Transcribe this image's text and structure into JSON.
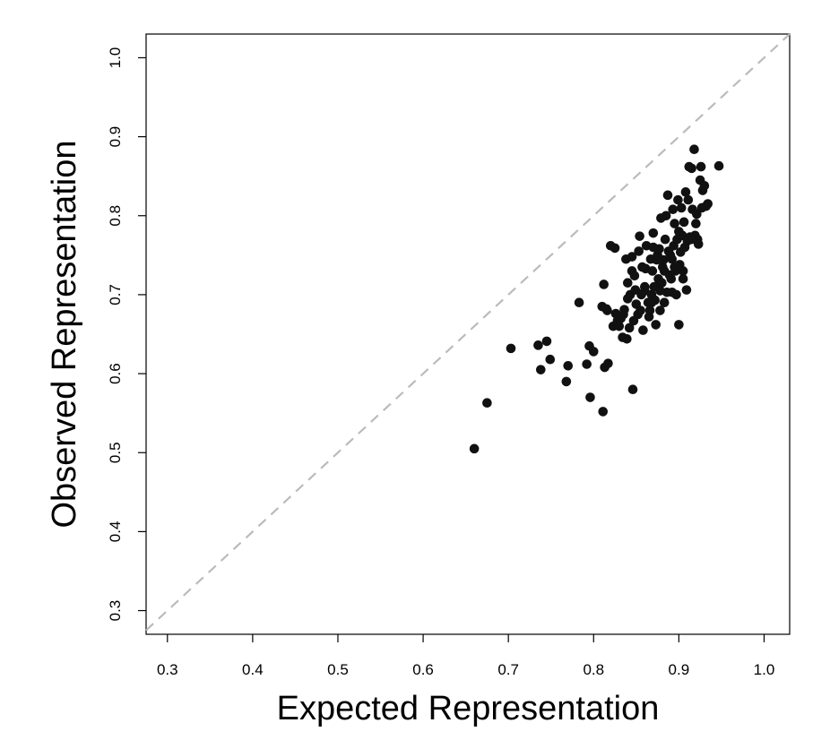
{
  "chart_data": {
    "type": "scatter",
    "xlabel": "Expected Representation",
    "ylabel": "Observed Representation",
    "xlim": [
      0.275,
      1.03
    ],
    "ylim": [
      0.27,
      1.03
    ],
    "x_ticks": [
      "0.3",
      "0.4",
      "0.5",
      "0.6",
      "0.7",
      "0.8",
      "0.9",
      "1.0"
    ],
    "y_ticks": [
      "0.3",
      "0.4",
      "0.5",
      "0.6",
      "0.7",
      "0.8",
      "0.9",
      "1.0"
    ],
    "grid": false,
    "reference_line": "identity y = x, dashed light gray",
    "point_color": "#111111",
    "reference_line_color": "#bbbbbb",
    "points": [
      [
        0.66,
        0.505
      ],
      [
        0.675,
        0.563
      ],
      [
        0.703,
        0.632
      ],
      [
        0.735,
        0.636
      ],
      [
        0.738,
        0.605
      ],
      [
        0.745,
        0.641
      ],
      [
        0.749,
        0.618
      ],
      [
        0.768,
        0.59
      ],
      [
        0.77,
        0.61
      ],
      [
        0.783,
        0.69
      ],
      [
        0.792,
        0.612
      ],
      [
        0.795,
        0.635
      ],
      [
        0.796,
        0.57
      ],
      [
        0.8,
        0.628
      ],
      [
        0.81,
        0.685
      ],
      [
        0.811,
        0.552
      ],
      [
        0.812,
        0.713
      ],
      [
        0.813,
        0.608
      ],
      [
        0.816,
        0.68
      ],
      [
        0.817,
        0.613
      ],
      [
        0.82,
        0.762
      ],
      [
        0.823,
        0.66
      ],
      [
        0.825,
        0.759
      ],
      [
        0.826,
        0.676
      ],
      [
        0.828,
        0.667
      ],
      [
        0.83,
        0.66
      ],
      [
        0.832,
        0.67
      ],
      [
        0.834,
        0.646
      ],
      [
        0.836,
        0.681
      ],
      [
        0.838,
        0.745
      ],
      [
        0.839,
        0.644
      ],
      [
        0.84,
        0.715
      ],
      [
        0.842,
        0.658
      ],
      [
        0.843,
        0.7
      ],
      [
        0.845,
        0.73
      ],
      [
        0.846,
        0.58
      ],
      [
        0.847,
        0.667
      ],
      [
        0.848,
        0.724
      ],
      [
        0.849,
        0.706
      ],
      [
        0.85,
        0.688
      ],
      [
        0.852,
        0.675
      ],
      [
        0.853,
        0.755
      ],
      [
        0.854,
        0.774
      ],
      [
        0.855,
        0.68
      ],
      [
        0.856,
        0.7
      ],
      [
        0.857,
        0.735
      ],
      [
        0.858,
        0.655
      ],
      [
        0.86,
        0.71
      ],
      [
        0.861,
        0.733
      ],
      [
        0.862,
        0.762
      ],
      [
        0.864,
        0.69
      ],
      [
        0.865,
        0.672
      ],
      [
        0.866,
        0.68
      ],
      [
        0.867,
        0.745
      ],
      [
        0.868,
        0.7
      ],
      [
        0.869,
        0.73
      ],
      [
        0.87,
        0.778
      ],
      [
        0.871,
        0.71
      ],
      [
        0.872,
        0.693
      ],
      [
        0.873,
        0.662
      ],
      [
        0.874,
        0.744
      ],
      [
        0.875,
        0.75
      ],
      [
        0.876,
        0.72
      ],
      [
        0.877,
        0.758
      ],
      [
        0.878,
        0.68
      ],
      [
        0.879,
        0.797
      ],
      [
        0.88,
        0.715
      ],
      [
        0.881,
        0.735
      ],
      [
        0.882,
        0.744
      ],
      [
        0.883,
        0.73
      ],
      [
        0.884,
        0.77
      ],
      [
        0.885,
        0.8
      ],
      [
        0.886,
        0.703
      ],
      [
        0.887,
        0.826
      ],
      [
        0.888,
        0.755
      ],
      [
        0.889,
        0.725
      ],
      [
        0.89,
        0.75
      ],
      [
        0.891,
        0.72
      ],
      [
        0.892,
        0.703
      ],
      [
        0.893,
        0.808
      ],
      [
        0.894,
        0.762
      ],
      [
        0.895,
        0.79
      ],
      [
        0.896,
        0.73
      ],
      [
        0.897,
        0.7
      ],
      [
        0.898,
        0.77
      ],
      [
        0.899,
        0.82
      ],
      [
        0.9,
        0.662
      ],
      [
        0.901,
        0.738
      ],
      [
        0.902,
        0.754
      ],
      [
        0.903,
        0.81
      ],
      [
        0.904,
        0.775
      ],
      [
        0.905,
        0.72
      ],
      [
        0.906,
        0.792
      ],
      [
        0.907,
        0.76
      ],
      [
        0.908,
        0.83
      ],
      [
        0.909,
        0.706
      ],
      [
        0.91,
        0.768
      ],
      [
        0.911,
        0.82
      ],
      [
        0.912,
        0.862
      ],
      [
        0.913,
        0.773
      ],
      [
        0.915,
        0.86
      ],
      [
        0.916,
        0.808
      ],
      [
        0.918,
        0.884
      ],
      [
        0.919,
        0.775
      ],
      [
        0.92,
        0.79
      ],
      [
        0.921,
        0.802
      ],
      [
        0.922,
        0.77
      ],
      [
        0.923,
        0.764
      ],
      [
        0.925,
        0.845
      ],
      [
        0.926,
        0.862
      ],
      [
        0.927,
        0.81
      ],
      [
        0.928,
        0.832
      ],
      [
        0.93,
        0.838
      ],
      [
        0.932,
        0.812
      ],
      [
        0.934,
        0.815
      ],
      [
        0.947,
        0.863
      ],
      [
        0.895,
        0.735
      ],
      [
        0.905,
        0.73
      ],
      [
        0.878,
        0.705
      ],
      [
        0.868,
        0.69
      ],
      [
        0.86,
        0.705
      ],
      [
        0.84,
        0.695
      ],
      [
        0.845,
        0.748
      ],
      [
        0.815,
        0.682
      ],
      [
        0.835,
        0.675
      ],
      [
        0.87,
        0.76
      ],
      [
        0.9,
        0.78
      ],
      [
        0.915,
        0.77
      ],
      [
        0.892,
        0.745
      ],
      [
        0.883,
        0.69
      ]
    ]
  }
}
